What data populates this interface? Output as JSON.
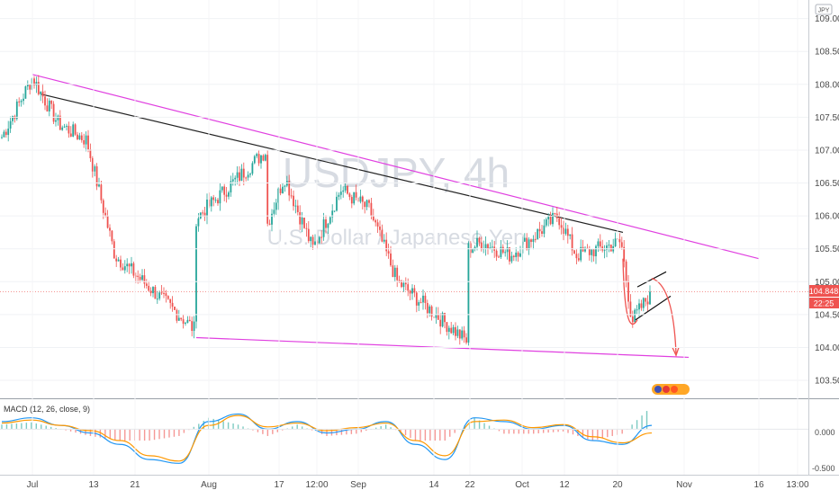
{
  "watermark": {
    "symbol": "USDJPY, 4h",
    "description": "U.S. Dollar / Japanese Yen"
  },
  "price_scale": {
    "currency": "JPY",
    "ticks": [
      "109.000",
      "108.500",
      "108.000",
      "107.500",
      "107.000",
      "106.500",
      "106.000",
      "105.500",
      "105.000",
      "104.500",
      "104.000",
      "103.500"
    ],
    "last_price": "104.848",
    "countdown": "22:25"
  },
  "time_axis": [
    "Jul",
    "13",
    "21",
    "Aug",
    "17",
    "12:00",
    "Sep",
    "14",
    "22",
    "Oct",
    "12",
    "20",
    "Nov",
    "16",
    "13:00"
  ],
  "macd_panel": {
    "title": "MACD (12, 26, close, 9)",
    "ticks": [
      "0.000",
      "-0.500"
    ]
  },
  "colors": {
    "up_candle": "#26a69a",
    "down_candle": "#ef5350",
    "trendline_magenta": "#e040e0",
    "trendline_black": "#222222",
    "macd_line": "#2196f3",
    "signal_line": "#ff9800",
    "price_badge": "#ef5350",
    "projection_arrow": "#ef5350"
  },
  "icons": [
    "earnings-badge-icon"
  ],
  "chart_data": {
    "type": "candlestick",
    "title": "USDJPY, 4h",
    "subtitle": "U.S. Dollar / Japanese Yen",
    "ylim": [
      103.2,
      109.2
    ],
    "macd_ylim": [
      -0.6,
      0.3
    ],
    "x": [
      "Jul",
      "13",
      "21",
      "Aug",
      "17",
      "12:00",
      "Sep",
      "14",
      "22",
      "Oct",
      "12",
      "20",
      "Nov",
      "16",
      "13:00"
    ],
    "anchors": [
      {
        "x": "Jul",
        "close": 107.2
      },
      {
        "x": "Jul",
        "close": 108.1
      },
      {
        "x": "13",
        "close": 107.4
      },
      {
        "x": "21",
        "close": 107.15
      },
      {
        "x": "21",
        "close": 105.4
      },
      {
        "x": "Aug",
        "close": 104.25
      },
      {
        "x": "Aug",
        "close": 105.6
      },
      {
        "x": "17",
        "close": 107.0
      },
      {
        "x": "17",
        "close": 106.3
      },
      {
        "x": "12:00",
        "close": 105.4
      },
      {
        "x": "12:00",
        "close": 106.6
      },
      {
        "x": "Sep",
        "close": 105.5
      },
      {
        "x": "Sep",
        "close": 106.4
      },
      {
        "x": "14",
        "close": 106.1
      },
      {
        "x": "14",
        "close": 105.0
      },
      {
        "x": "22",
        "close": 104.1
      },
      {
        "x": "22",
        "close": 105.4
      },
      {
        "x": "Oct",
        "close": 105.6
      },
      {
        "x": "Oct",
        "close": 105.4
      },
      {
        "x": "12",
        "close": 106.0
      },
      {
        "x": "12",
        "close": 105.4
      },
      {
        "x": "20",
        "close": 105.6
      },
      {
        "x": "20",
        "close": 104.4
      },
      {
        "x": "20",
        "close": 104.85
      }
    ],
    "last_close": 104.848,
    "lines": [
      {
        "name": "upper-magenta-trendline",
        "from": {
          "x": "Jul",
          "y": 108.15
        },
        "to": {
          "x": "Nov",
          "y": 105.35
        }
      },
      {
        "name": "black-trendline",
        "from": {
          "x": "Jul",
          "y": 107.85
        },
        "to": {
          "x": "20",
          "y": 105.75
        }
      },
      {
        "name": "lower-magenta-trendline",
        "from": {
          "x": "Aug",
          "y": 104.15
        },
        "to": {
          "x": "Nov",
          "y": 103.85
        }
      }
    ],
    "macd": {
      "macd_values": [
        0.1,
        0.15,
        0.05,
        -0.05,
        -0.2,
        -0.4,
        -0.45,
        0.1,
        0.2,
        0.0,
        0.1,
        -0.05,
        0.0,
        0.1,
        -0.2,
        -0.4,
        0.15,
        0.1,
        0.0,
        0.05,
        -0.15,
        -0.2,
        0.05
      ],
      "signal_values": [
        0.08,
        0.12,
        0.05,
        -0.02,
        -0.15,
        -0.35,
        -0.42,
        0.05,
        0.18,
        0.03,
        0.08,
        -0.02,
        0.02,
        0.08,
        -0.15,
        -0.35,
        0.1,
        0.12,
        0.02,
        0.06,
        -0.1,
        -0.18,
        -0.05
      ]
    }
  }
}
